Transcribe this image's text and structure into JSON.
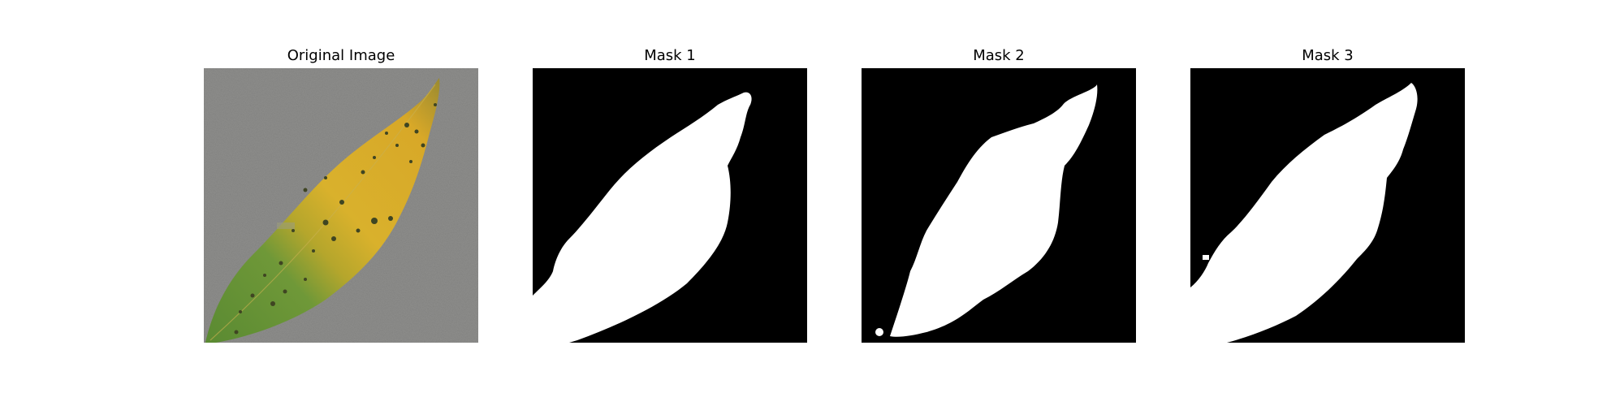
{
  "panels": [
    {
      "title": "Original Image",
      "content": "leaf-photo"
    },
    {
      "title": "Mask 1",
      "content": "binary-mask"
    },
    {
      "title": "Mask 2",
      "content": "binary-mask"
    },
    {
      "title": "Mask 3",
      "content": "binary-mask"
    }
  ],
  "colors": {
    "background": "#ffffff",
    "mask_background": "#000000",
    "mask_foreground": "#ffffff",
    "photo_background": "#8e8e8c",
    "leaf_yellow": "#d9b12c",
    "leaf_green": "#5f8f34",
    "leaf_spots": "#3f4522"
  }
}
